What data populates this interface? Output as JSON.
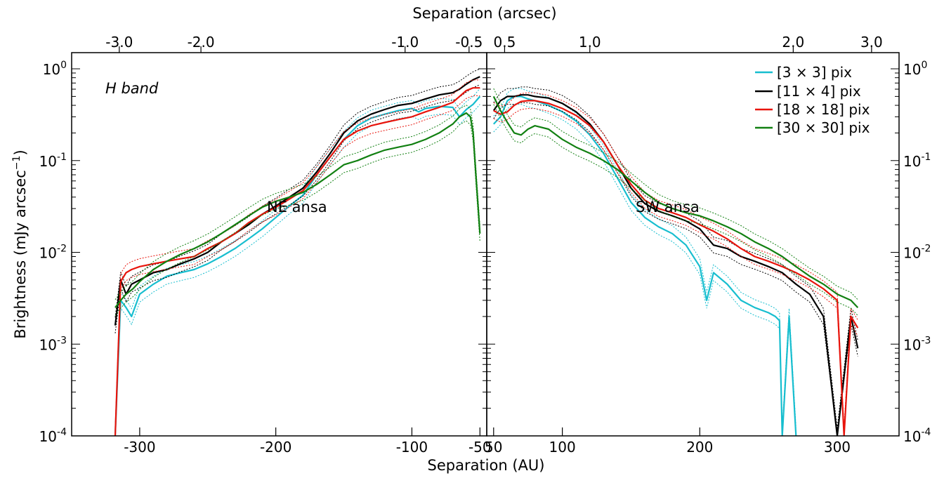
{
  "chart_data": {
    "type": "line",
    "top_axis_label": "Separation (arcsec)",
    "xlabel": "Separation (AU)",
    "ylabel": "Brightness (mJy arcsec",
    "ylabel_sup": "−1",
    "ylabel_close": ")",
    "y_scale": "log",
    "ylim": [
      0.0001,
      1.5
    ],
    "y_ticks": [
      {
        "value": 1,
        "mant": "10",
        "exp": "0"
      },
      {
        "value": 0.1,
        "mant": "10",
        "exp": "-1"
      },
      {
        "value": 0.01,
        "mant": "10",
        "exp": "-2"
      },
      {
        "value": 0.001,
        "mant": "10",
        "exp": "-3"
      },
      {
        "value": 0.0001,
        "mant": "10",
        "exp": "-4"
      }
    ],
    "band_label": "H band",
    "legend_placement": "top-right",
    "panels": [
      {
        "id": "ne",
        "annotation": "NE ansa",
        "xlim": [
          -350,
          -45
        ],
        "x_ticks": [
          {
            "value": -300,
            "label": "-300"
          },
          {
            "value": -200,
            "label": "-200"
          },
          {
            "value": -100,
            "label": "-100"
          },
          {
            "value": -50,
            "label": "-50"
          }
        ],
        "top_ticks": [
          {
            "value": -315,
            "label": "-3.0"
          },
          {
            "value": -255,
            "label": "-2.0"
          },
          {
            "value": -105,
            "label": "-1.0"
          },
          {
            "value": -58,
            "label": "-0.5"
          }
        ],
        "series": [
          {
            "name": "[3 × 3] pix",
            "color": "#17becf",
            "x": [
              -318,
              -314,
              -310,
              -306,
              -300,
              -290,
              -280,
              -270,
              -260,
              -250,
              -240,
              -230,
              -220,
              -210,
              -200,
              -190,
              -180,
              -170,
              -160,
              -150,
              -140,
              -130,
              -120,
              -110,
              -100,
              -95,
              -90,
              -80,
              -70,
              -65,
              -60,
              -55,
              -50
            ],
            "y": [
              0.0001,
              0.003,
              0.0025,
              0.002,
              0.0035,
              0.0045,
              0.0055,
              0.006,
              0.0065,
              0.0075,
              0.009,
              0.011,
              0.014,
              0.018,
              0.024,
              0.032,
              0.042,
              0.07,
              0.11,
              0.17,
              0.24,
              0.29,
              0.32,
              0.35,
              0.37,
              0.34,
              0.37,
              0.39,
              0.38,
              0.3,
              0.36,
              0.41,
              0.5
            ]
          },
          {
            "name": "[11 × 4] pix",
            "color": "#000000",
            "x": [
              -318,
              -314,
              -310,
              -306,
              -300,
              -290,
              -280,
              -270,
              -260,
              -250,
              -240,
              -230,
              -220,
              -210,
              -200,
              -190,
              -180,
              -170,
              -160,
              -150,
              -140,
              -130,
              -120,
              -110,
              -100,
              -90,
              -80,
              -70,
              -65,
              -60,
              -55,
              -50
            ],
            "y": [
              0.0016,
              0.005,
              0.0035,
              0.0045,
              0.005,
              0.006,
              0.0065,
              0.0075,
              0.0085,
              0.01,
              0.013,
              0.016,
              0.02,
              0.026,
              0.032,
              0.04,
              0.05,
              0.075,
              0.12,
              0.2,
              0.27,
              0.32,
              0.36,
              0.4,
              0.42,
              0.47,
              0.52,
              0.55,
              0.6,
              0.68,
              0.76,
              0.82
            ]
          },
          {
            "name": "[18 × 18] pix",
            "color": "#e8140c",
            "x": [
              -318,
              -314,
              -310,
              -306,
              -300,
              -290,
              -280,
              -270,
              -260,
              -250,
              -240,
              -230,
              -220,
              -210,
              -200,
              -190,
              -180,
              -170,
              -160,
              -150,
              -140,
              -130,
              -120,
              -110,
              -100,
              -90,
              -80,
              -70,
              -65,
              -60,
              -55,
              -50
            ],
            "y": [
              0.0001,
              0.0048,
              0.006,
              0.0065,
              0.007,
              0.0075,
              0.008,
              0.0085,
              0.009,
              0.011,
              0.013,
              0.016,
              0.021,
              0.026,
              0.031,
              0.038,
              0.047,
              0.07,
              0.11,
              0.17,
              0.21,
              0.24,
              0.26,
              0.28,
              0.3,
              0.34,
              0.38,
              0.43,
              0.5,
              0.58,
              0.62,
              0.62
            ]
          },
          {
            "name": "[30 × 30] pix",
            "color": "#118011",
            "x": [
              -318,
              -314,
              -310,
              -305,
              -300,
              -290,
              -280,
              -270,
              -260,
              -250,
              -240,
              -230,
              -220,
              -210,
              -200,
              -190,
              -180,
              -170,
              -160,
              -150,
              -140,
              -130,
              -120,
              -110,
              -100,
              -90,
              -80,
              -70,
              -65,
              -60,
              -57,
              -55,
              -53,
              -50
            ],
            "y": [
              0.0025,
              0.003,
              0.0035,
              0.004,
              0.0048,
              0.0065,
              0.008,
              0.0095,
              0.011,
              0.013,
              0.016,
              0.02,
              0.025,
              0.031,
              0.036,
              0.04,
              0.045,
              0.055,
              0.07,
              0.09,
              0.1,
              0.115,
              0.13,
              0.14,
              0.15,
              0.17,
              0.2,
              0.25,
              0.3,
              0.33,
              0.3,
              0.2,
              0.07,
              0.016
            ]
          }
        ]
      },
      {
        "id": "sw",
        "annotation": "SW ansa",
        "xlim": [
          45,
          345
        ],
        "x_ticks": [
          {
            "value": 50,
            "label": "50"
          },
          {
            "value": 100,
            "label": "100"
          },
          {
            "value": 200,
            "label": "200"
          },
          {
            "value": 300,
            "label": "300"
          }
        ],
        "top_ticks": [
          {
            "value": 58,
            "label": "0.5"
          },
          {
            "value": 120,
            "label": "1.0"
          },
          {
            "value": 268,
            "label": "2.0"
          },
          {
            "value": 325,
            "label": "3.0"
          }
        ],
        "series": [
          {
            "name": "[3 × 3] pix",
            "color": "#17becf",
            "x": [
              50,
              55,
              60,
              65,
              70,
              75,
              80,
              90,
              100,
              110,
              120,
              130,
              140,
              150,
              160,
              170,
              180,
              190,
              200,
              205,
              210,
              220,
              230,
              240,
              250,
              255,
              258,
              260,
              265,
              270
            ],
            "y": [
              0.25,
              0.3,
              0.45,
              0.5,
              0.5,
              0.47,
              0.45,
              0.4,
              0.34,
              0.27,
              0.19,
              0.12,
              0.065,
              0.035,
              0.024,
              0.019,
              0.016,
              0.012,
              0.007,
              0.003,
              0.006,
              0.0045,
              0.003,
              0.0025,
              0.0022,
              0.002,
              0.0018,
              0.0001,
              0.002,
              0.0001
            ]
          },
          {
            "name": "[11 × 4] pix",
            "color": "#000000",
            "x": [
              50,
              55,
              60,
              65,
              70,
              75,
              80,
              90,
              100,
              110,
              120,
              130,
              140,
              150,
              160,
              170,
              180,
              190,
              200,
              210,
              220,
              230,
              240,
              250,
              260,
              270,
              280,
              290,
              300,
              310,
              315
            ],
            "y": [
              0.35,
              0.45,
              0.5,
              0.5,
              0.52,
              0.52,
              0.5,
              0.48,
              0.42,
              0.34,
              0.25,
              0.16,
              0.09,
              0.05,
              0.034,
              0.028,
              0.025,
              0.022,
              0.018,
              0.012,
              0.011,
              0.009,
              0.008,
              0.007,
              0.006,
              0.0045,
              0.0035,
              0.002,
              0.0001,
              0.002,
              0.0009
            ]
          },
          {
            "name": "[18 × 18] pix",
            "color": "#e8140c",
            "x": [
              50,
              55,
              60,
              65,
              70,
              75,
              80,
              90,
              100,
              110,
              120,
              130,
              140,
              150,
              160,
              170,
              180,
              190,
              200,
              210,
              220,
              230,
              240,
              250,
              260,
              270,
              280,
              290,
              300,
              305,
              310,
              315
            ],
            "y": [
              0.35,
              0.32,
              0.34,
              0.4,
              0.44,
              0.45,
              0.45,
              0.42,
              0.37,
              0.31,
              0.24,
              0.16,
              0.09,
              0.055,
              0.037,
              0.03,
              0.027,
              0.024,
              0.02,
              0.017,
              0.014,
              0.011,
              0.009,
              0.008,
              0.007,
              0.006,
              0.005,
              0.004,
              0.003,
              0.0001,
              0.002,
              0.0015
            ]
          },
          {
            "name": "[30 × 30] pix",
            "color": "#118011",
            "x": [
              50,
              55,
              60,
              65,
              70,
              75,
              80,
              90,
              100,
              110,
              120,
              130,
              140,
              150,
              160,
              170,
              180,
              190,
              200,
              210,
              220,
              230,
              240,
              250,
              260,
              270,
              280,
              290,
              300,
              310,
              315
            ],
            "y": [
              0.5,
              0.35,
              0.26,
              0.2,
              0.19,
              0.22,
              0.24,
              0.22,
              0.17,
              0.14,
              0.12,
              0.1,
              0.08,
              0.06,
              0.045,
              0.035,
              0.03,
              0.027,
              0.025,
              0.022,
              0.019,
              0.016,
              0.013,
              0.011,
              0.009,
              0.007,
              0.0055,
              0.0045,
              0.0035,
              0.003,
              0.0025
            ]
          }
        ]
      }
    ]
  }
}
